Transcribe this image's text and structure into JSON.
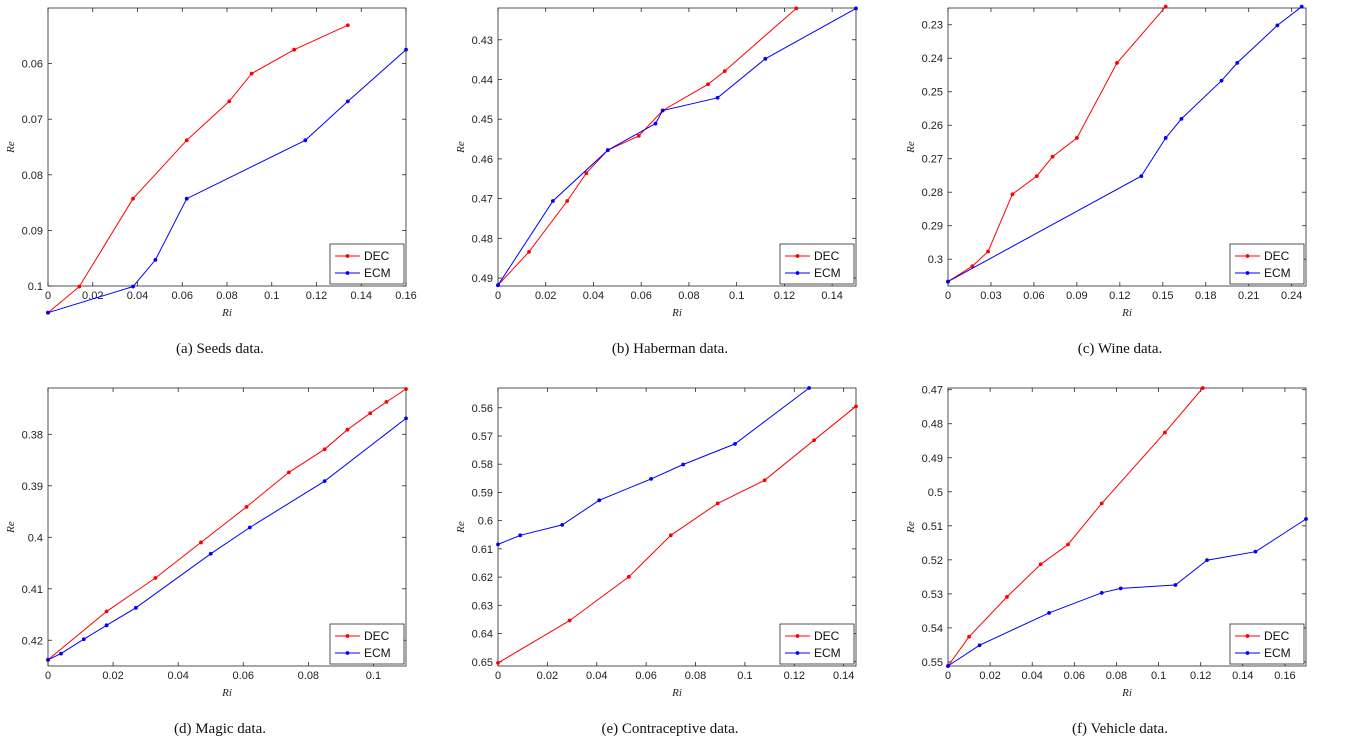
{
  "colors": {
    "DEC": "#ff0000",
    "ECM": "#0000ff",
    "axis": "#262626"
  },
  "chart_data": [
    {
      "type": "line",
      "caption": "(a) Seeds data.",
      "xlabel": "Ri",
      "ylabel": "Re",
      "xlim": [
        0,
        0.16
      ],
      "ylim": [
        0.05,
        0.1
      ],
      "xticks": [
        0,
        0.02,
        0.04,
        0.06,
        0.08,
        0.1,
        0.12,
        0.14,
        0.16
      ],
      "xtick_labels": [
        "0",
        "0.02",
        "0.04",
        "0.06",
        "0.08",
        "0.1",
        "0.12",
        "0.14",
        "0.16"
      ],
      "yticks": [
        0.06,
        0.07,
        0.08,
        0.09,
        0.1
      ],
      "ytick_labels": [
        "0.06",
        "0.07",
        "0.08",
        "0.09",
        "0.1"
      ],
      "legend": "bottom-right",
      "series": [
        {
          "name": "DEC",
          "x": [
            0,
            0.014,
            0.038,
            0.062,
            0.081,
            0.091,
            0.11,
            0.134
          ],
          "y": [
            0.1048,
            0.1001,
            0.0843,
            0.0738,
            0.0668,
            0.0618,
            0.0575,
            0.0531
          ]
        },
        {
          "name": "ECM",
          "x": [
            0,
            0.038,
            0.048,
            0.062,
            0.115,
            0.134,
            0.16
          ],
          "y": [
            0.1048,
            0.1001,
            0.0953,
            0.0843,
            0.0738,
            0.0668,
            0.0575
          ]
        }
      ]
    },
    {
      "type": "line",
      "caption": "(b) Haberman data.",
      "xlabel": "Ri",
      "ylabel": "Re",
      "xlim": [
        0,
        0.15
      ],
      "ylim": [
        0.422,
        0.492
      ],
      "xticks": [
        0,
        0.02,
        0.04,
        0.06,
        0.08,
        0.1,
        0.12,
        0.14
      ],
      "xtick_labels": [
        "0",
        "0.02",
        "0.04",
        "0.06",
        "0.08",
        "0.1",
        "0.12",
        "0.14"
      ],
      "yticks": [
        0.43,
        0.44,
        0.45,
        0.46,
        0.47,
        0.48,
        0.49
      ],
      "ytick_labels": [
        "0.43",
        "0.44",
        "0.45",
        "0.46",
        "0.47",
        "0.48",
        "0.49"
      ],
      "legend": "bottom-right",
      "series": [
        {
          "name": "DEC",
          "x": [
            0,
            0.013,
            0.029,
            0.037,
            0.046,
            0.059,
            0.069,
            0.088,
            0.095,
            0.125
          ],
          "y": [
            0.4918,
            0.4834,
            0.4706,
            0.4636,
            0.4578,
            0.4542,
            0.4478,
            0.4412,
            0.4379,
            0.4221
          ]
        },
        {
          "name": "ECM",
          "x": [
            0,
            0.023,
            0.046,
            0.066,
            0.069,
            0.092,
            0.112,
            0.15
          ],
          "y": [
            0.4918,
            0.4706,
            0.4578,
            0.4511,
            0.4478,
            0.4446,
            0.4348,
            0.4221
          ]
        }
      ]
    },
    {
      "type": "line",
      "caption": "(c) Wine data.",
      "xlabel": "Ri",
      "ylabel": "Re",
      "xlim": [
        0,
        0.25
      ],
      "ylim": [
        0.225,
        0.308
      ],
      "xticks": [
        0,
        0.03,
        0.06,
        0.09,
        0.12,
        0.15,
        0.18,
        0.21,
        0.24
      ],
      "xtick_labels": [
        "0",
        "0.03",
        "0.06",
        "0.09",
        "0.12",
        "0.15",
        "0.18",
        "0.21",
        "0.24"
      ],
      "yticks": [
        0.23,
        0.24,
        0.25,
        0.26,
        0.27,
        0.28,
        0.29,
        0.3
      ],
      "ytick_labels": [
        "0.23",
        "0.24",
        "0.25",
        "0.26",
        "0.27",
        "0.28",
        "0.29",
        "0.3"
      ],
      "legend": "bottom-right",
      "series": [
        {
          "name": "DEC",
          "x": [
            0,
            0.017,
            0.028,
            0.045,
            0.062,
            0.073,
            0.09,
            0.118,
            0.152
          ],
          "y": [
            0.3067,
            0.3021,
            0.2977,
            0.2806,
            0.2752,
            0.2694,
            0.2638,
            0.2414,
            0.2246
          ]
        },
        {
          "name": "ECM",
          "x": [
            0,
            0.135,
            0.152,
            0.163,
            0.191,
            0.202,
            0.23,
            0.247
          ],
          "y": [
            0.3067,
            0.2752,
            0.2638,
            0.2581,
            0.2467,
            0.2414,
            0.2302,
            0.2246
          ]
        }
      ]
    },
    {
      "type": "line",
      "caption": "(d) Magic data.",
      "xlabel": "Ri",
      "ylabel": "Re",
      "xlim": [
        0,
        0.11
      ],
      "ylim": [
        0.371,
        0.425
      ],
      "xticks": [
        0,
        0.02,
        0.04,
        0.06,
        0.08,
        0.1
      ],
      "xtick_labels": [
        "0",
        "0.02",
        "0.04",
        "0.06",
        "0.08",
        "0.1"
      ],
      "yticks": [
        0.38,
        0.39,
        0.4,
        0.41,
        0.42
      ],
      "ytick_labels": [
        "0.38",
        "0.39",
        "0.4",
        "0.41",
        "0.42"
      ],
      "legend": "bottom-right",
      "series": [
        {
          "name": "DEC",
          "x": [
            0,
            0.018,
            0.033,
            0.047,
            0.061,
            0.074,
            0.085,
            0.092,
            0.099,
            0.104,
            0.11
          ],
          "y": [
            0.4238,
            0.4144,
            0.4079,
            0.401,
            0.3941,
            0.3874,
            0.3829,
            0.3791,
            0.3759,
            0.3737,
            0.3712
          ]
        },
        {
          "name": "ECM",
          "x": [
            0,
            0.004,
            0.011,
            0.018,
            0.027,
            0.05,
            0.062,
            0.085,
            0.11
          ],
          "y": [
            0.4238,
            0.4226,
            0.4198,
            0.4171,
            0.4137,
            0.4032,
            0.3981,
            0.3891,
            0.3769
          ]
        }
      ]
    },
    {
      "type": "line",
      "caption": "(e) Contraceptive data.",
      "xlabel": "Ri",
      "ylabel": "Re",
      "xlim": [
        0,
        0.145
      ],
      "ylim": [
        0.553,
        0.6515
      ],
      "xticks": [
        0,
        0.02,
        0.04,
        0.06,
        0.08,
        0.1,
        0.12,
        0.14
      ],
      "xtick_labels": [
        "0",
        "0.02",
        "0.04",
        "0.06",
        "0.08",
        "0.1",
        "0.12",
        "0.14"
      ],
      "yticks": [
        0.56,
        0.57,
        0.58,
        0.59,
        0.6,
        0.61,
        0.62,
        0.63,
        0.64,
        0.65
      ],
      "ytick_labels": [
        "0.56",
        "0.57",
        "0.58",
        "0.59",
        "0.6",
        "0.61",
        "0.62",
        "0.63",
        "0.64",
        "0.65"
      ],
      "legend": "bottom-right",
      "series": [
        {
          "name": "DEC",
          "x": [
            0,
            0.029,
            0.053,
            0.07,
            0.089,
            0.108,
            0.128,
            0.145
          ],
          "y": [
            0.6504,
            0.6354,
            0.6199,
            0.6052,
            0.5939,
            0.5857,
            0.5715,
            0.5595
          ]
        },
        {
          "name": "ECM",
          "x": [
            0,
            0.009,
            0.026,
            0.041,
            0.062,
            0.075,
            0.096,
            0.126
          ],
          "y": [
            0.6084,
            0.6052,
            0.6015,
            0.5928,
            0.5852,
            0.5801,
            0.5728,
            0.553
          ]
        }
      ]
    },
    {
      "type": "line",
      "caption": "(f) Vehicle data.",
      "xlabel": "Ri",
      "ylabel": "Re",
      "xlim": [
        0,
        0.17
      ],
      "ylim": [
        0.4695,
        0.5512
      ],
      "xticks": [
        0,
        0.02,
        0.04,
        0.06,
        0.08,
        0.1,
        0.12,
        0.14,
        0.16
      ],
      "xtick_labels": [
        "0",
        "0.02",
        "0.04",
        "0.06",
        "0.08",
        "0.1",
        "0.12",
        "0.14",
        "0.16"
      ],
      "yticks": [
        0.47,
        0.48,
        0.49,
        0.5,
        0.51,
        0.52,
        0.53,
        0.54,
        0.55
      ],
      "ytick_labels": [
        "0.47",
        "0.48",
        "0.49",
        "0.5",
        "0.51",
        "0.52",
        "0.53",
        "0.54",
        "0.55"
      ],
      "legend": "bottom-right",
      "series": [
        {
          "name": "DEC",
          "x": [
            0,
            0.01,
            0.028,
            0.044,
            0.057,
            0.073,
            0.103,
            0.121
          ],
          "y": [
            0.5512,
            0.5426,
            0.5309,
            0.5213,
            0.5155,
            0.5034,
            0.4826,
            0.4695
          ]
        },
        {
          "name": "ECM",
          "x": [
            0,
            0.015,
            0.048,
            0.073,
            0.082,
            0.108,
            0.123,
            0.146,
            0.17
          ],
          "y": [
            0.5512,
            0.5451,
            0.5356,
            0.5297,
            0.5284,
            0.5274,
            0.5201,
            0.5176,
            0.508
          ]
        }
      ]
    }
  ]
}
